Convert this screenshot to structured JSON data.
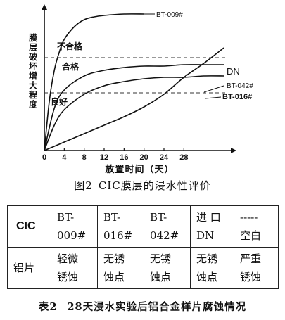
{
  "chart_data": {
    "type": "line",
    "title": "",
    "xlabel": "放置时间（天）",
    "ylabel": "膜层破坏增大程度",
    "xticks": [
      "0",
      "4",
      "8",
      "12",
      "16",
      "20",
      "24",
      "28"
    ],
    "xlim": [
      0,
      36
    ],
    "ylim": [
      0,
      100
    ],
    "series": [
      {
        "name": "BT-009#",
        "x": [
          0,
          1,
          2,
          3,
          4,
          6,
          8,
          10,
          12,
          16,
          20
        ],
        "y": [
          0,
          35,
          57,
          70,
          79,
          88,
          93,
          95,
          96,
          97,
          97
        ]
      },
      {
        "name": "DN",
        "x": [
          0,
          4,
          8,
          12,
          16,
          20,
          24,
          28,
          32,
          36
        ],
        "y": [
          0,
          6,
          12,
          18,
          24,
          31,
          40,
          52,
          62,
          73
        ]
      },
      {
        "name": "BT-042#",
        "x": [
          0,
          2,
          4,
          8,
          12,
          16,
          20,
          24,
          28,
          32,
          36
        ],
        "y": [
          0,
          30,
          43,
          53,
          57,
          59,
          60,
          60,
          61,
          61,
          61
        ]
      },
      {
        "name": "BT-016#",
        "x": [
          0,
          2,
          4,
          8,
          12,
          16,
          20,
          24,
          28,
          32,
          36
        ],
        "y": [
          0,
          18,
          29,
          40,
          46,
          49,
          51,
          52,
          52,
          53,
          53
        ]
      }
    ],
    "thresholds": [
      {
        "label": "不合格",
        "y": 66
      },
      {
        "label": "良好",
        "y": 41
      }
    ],
    "region_label": "合格"
  },
  "figure_caption": {
    "number": "图2",
    "text": "CIC膜层的浸水性评价"
  },
  "table": {
    "header": [
      "CIC",
      "BT-\n009#",
      "BT-\n016#",
      "BT-\n042#",
      "进 口\nDN",
      "-----\n空白"
    ],
    "row": [
      "铝片",
      "轻微\n锈蚀",
      "无锈\n蚀点",
      "无锈\n蚀点",
      "无锈\n蚀点",
      "严重\n锈蚀"
    ]
  },
  "table_caption": {
    "number": "表2",
    "text": "28天浸水实验后铝合金样片腐蚀情况"
  }
}
